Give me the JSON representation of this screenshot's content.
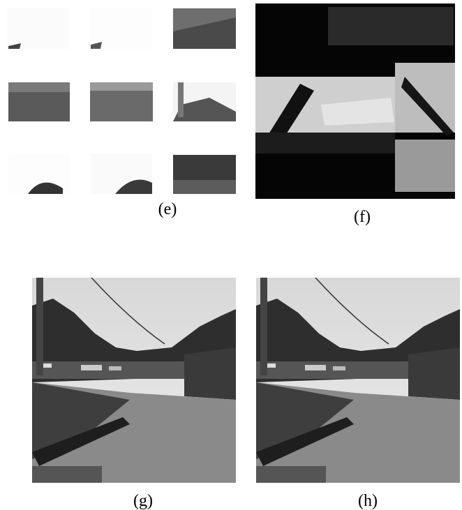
{
  "panels": [
    {
      "label": "(e)"
    },
    {
      "label": "(f)"
    },
    {
      "label": "(g)"
    },
    {
      "label": "(h)"
    }
  ]
}
